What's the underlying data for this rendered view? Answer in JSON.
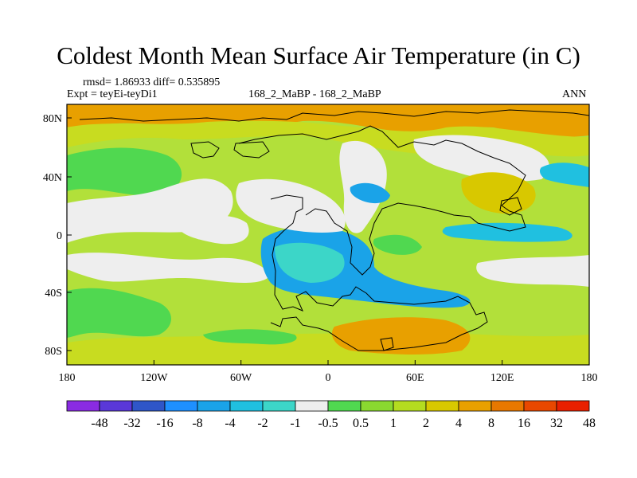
{
  "title": "Coldest Month Mean Surface Air Temperature (in C)",
  "stats": "rmsd= 1.86933 diff= 0.535895",
  "expt": "Expt = teyEi-teyDi1",
  "case": "168_2_MaBP - 168_2_MaBP",
  "season": "ANN",
  "lat_ticks": [
    "80N",
    "40N",
    "0",
    "40S",
    "80S"
  ],
  "lon_ticks": [
    "180",
    "120W",
    "60W",
    "0",
    "60E",
    "120E",
    "180"
  ],
  "colorbar": {
    "labels": [
      "-48",
      "-32",
      "-16",
      "-8",
      "-4",
      "-2",
      "-1",
      "-0.5",
      "0.5",
      "1",
      "2",
      "4",
      "8",
      "16",
      "32",
      "48"
    ],
    "colors": [
      "#8a2be2",
      "#5a38d8",
      "#2f56c8",
      "#1e90ff",
      "#1aa3e8",
      "#20c0e0",
      "#3cd6c8",
      "#eeeeee",
      "#50d850",
      "#8ad830",
      "#b4dc20",
      "#d8c800",
      "#e8a000",
      "#e87800",
      "#e84800",
      "#e82000"
    ]
  },
  "palette": {
    "background": "#b2e03a",
    "green": "#8ad830",
    "light_green": "#50d850",
    "yellow_green": "#c8dc20",
    "yellow": "#d8c800",
    "orange": "#e8a000",
    "neutral": "#eeeeee",
    "cyan": "#20c0e0",
    "blue": "#1aa3e8",
    "aqua": "#3cd6c8"
  }
}
